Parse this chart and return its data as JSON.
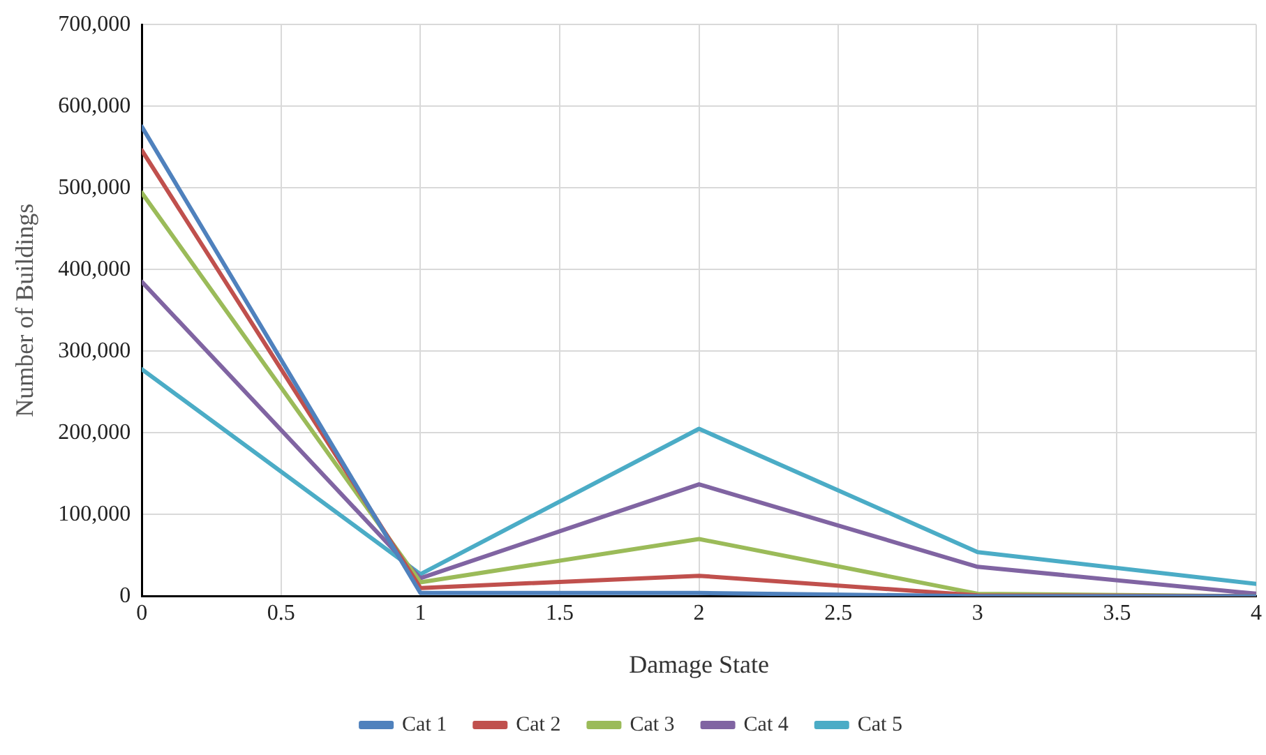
{
  "chart_data": {
    "type": "line",
    "xlabel": "Damage State",
    "ylabel": "Number of Buildings",
    "x": [
      0,
      1,
      2,
      3,
      4
    ],
    "series": [
      {
        "name": "Cat 1",
        "color": "#4f81bd",
        "values": [
          575000,
          4000,
          4000,
          0,
          0
        ]
      },
      {
        "name": "Cat 2",
        "color": "#c0504d",
        "values": [
          546000,
          10000,
          25000,
          1000,
          0
        ]
      },
      {
        "name": "Cat 3",
        "color": "#9bbb59",
        "values": [
          494000,
          17000,
          70000,
          3000,
          0
        ]
      },
      {
        "name": "Cat 4",
        "color": "#8064a2",
        "values": [
          385000,
          22000,
          137000,
          36000,
          3000
        ]
      },
      {
        "name": "Cat 5",
        "color": "#4bacc6",
        "values": [
          278000,
          27000,
          205000,
          54000,
          15000
        ]
      }
    ],
    "xlim": [
      0,
      4
    ],
    "xticks": [
      0,
      0.5,
      1,
      1.5,
      2,
      2.5,
      3,
      3.5,
      4
    ],
    "ylim": [
      0,
      700000
    ],
    "yticks": [
      {
        "value": 0,
        "label": "0"
      },
      {
        "value": 100000,
        "label": "100,000"
      },
      {
        "value": 200000,
        "label": "200,000"
      },
      {
        "value": 300000,
        "label": "300,000"
      },
      {
        "value": 400000,
        "label": "400,000"
      },
      {
        "value": 500000,
        "label": "500,000"
      },
      {
        "value": 600000,
        "label": "600,000"
      },
      {
        "value": 700000,
        "label": "700,000"
      }
    ],
    "grid": true,
    "legend": "bottom",
    "marker": "none",
    "line_style": "solid"
  }
}
